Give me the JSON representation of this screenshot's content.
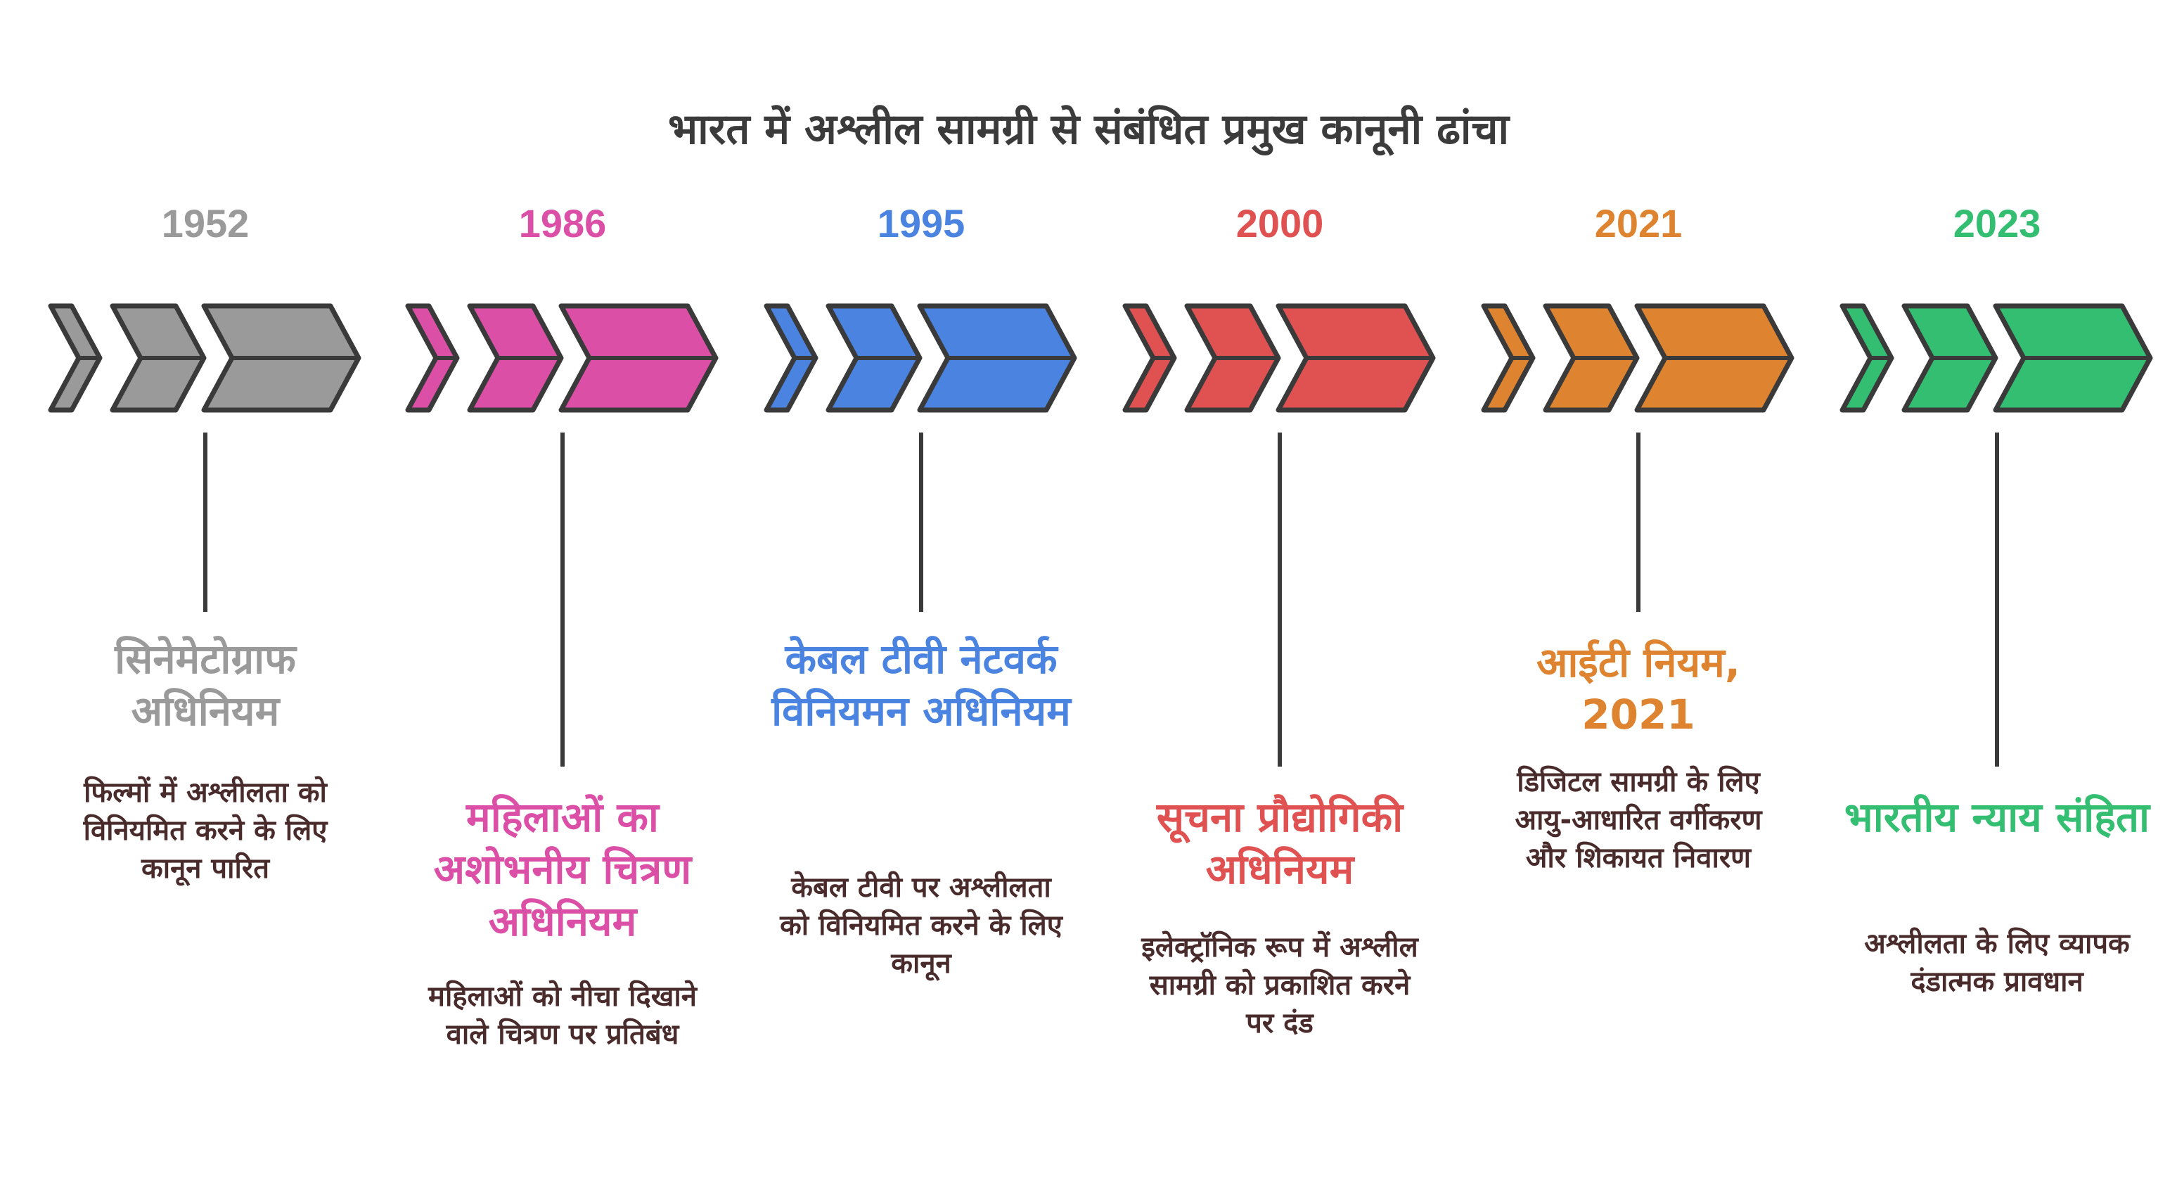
{
  "title": "भारत में अश्लील सामग्री से संबंधित प्रमुख कानूनी ढांचा",
  "colors": {
    "gray": "#9a9a9a",
    "pink": "#dc4fa6",
    "blue": "#4a83e0",
    "red": "#e05252",
    "orange": "#de8430",
    "green": "#33be72",
    "outline": "#3a3a3a"
  },
  "events": [
    {
      "year": "1952",
      "color": "#9a9a9a",
      "heading": "सिनेमेटोग्राफ अधिनियम",
      "description": "फिल्मों में अश्लीलता को विनियमित करने के लिए कानून पारित"
    },
    {
      "year": "1986",
      "color": "#dc4fa6",
      "heading": "महिलाओं का अशोभनीय चित्रण अधिनियम",
      "description": "महिलाओं को नीचा दिखाने वाले चित्रण पर प्रतिबंध"
    },
    {
      "year": "1995",
      "color": "#4a83e0",
      "heading": "केबल टीवी नेटवर्क विनियमन अधिनियम",
      "description": "केबल टीवी पर अश्लीलता को विनियमित करने के लिए कानून"
    },
    {
      "year": "2000",
      "color": "#e05252",
      "heading": "सूचना प्रौद्योगिकी अधिनियम",
      "description": "इलेक्ट्रॉनिक रूप में अश्लील सामग्री को प्रकाशित करने पर दंड"
    },
    {
      "year": "2021",
      "color": "#de8430",
      "heading": "आईटी नियम, 2021",
      "description": "डिजिटल सामग्री के लिए आयु-आधारित वर्गीकरण और शिकायत निवारण"
    },
    {
      "year": "2023",
      "color": "#33be72",
      "heading": "भारतीय न्याय संहिता",
      "description": "अश्लीलता के लिए व्यापक दंडात्मक प्रावधान"
    }
  ]
}
